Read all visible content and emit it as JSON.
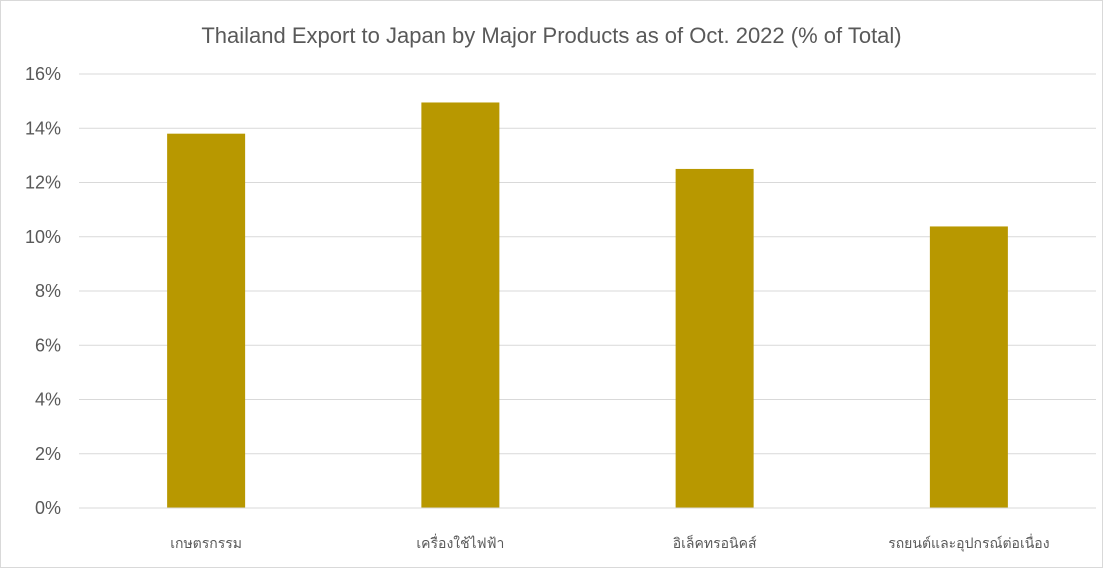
{
  "chart_data": {
    "type": "bar",
    "title": "Thailand Export to Japan by Major Products as of Oct. 2022  (% of Total)",
    "xlabel": "",
    "ylabel": "",
    "categories": [
      "เกษตรกรรม",
      "เครื่องใช้ไฟฟ้า",
      "อิเล็คทรอนิคส์",
      "รถยนต์และอุปกรณ์ต่อเนื่อง"
    ],
    "values": [
      13.8,
      14.95,
      12.5,
      10.38
    ],
    "ylim": [
      0,
      16
    ],
    "yticks": [
      0,
      2,
      4,
      6,
      8,
      10,
      12,
      14,
      16
    ],
    "ytick_labels": [
      "0%",
      "2%",
      "4%",
      "6%",
      "8%",
      "10%",
      "12%",
      "14%",
      "16%"
    ],
    "bar_color": "#b89800",
    "grid": true,
    "legend": "none"
  }
}
